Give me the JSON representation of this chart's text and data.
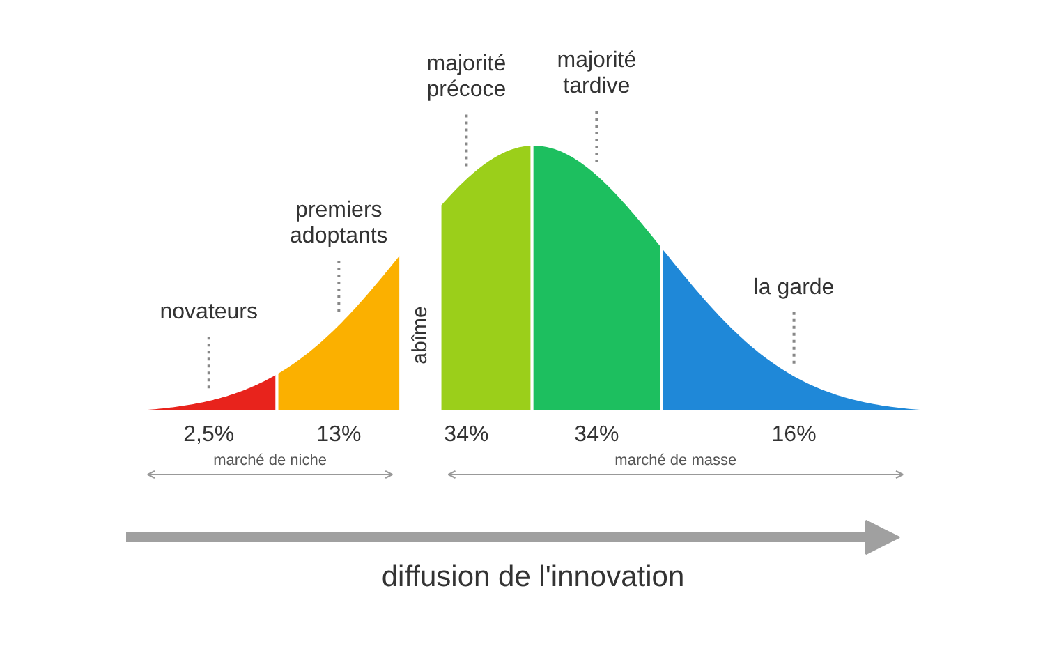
{
  "chart_data": {
    "type": "other",
    "categories": [
      "novateurs",
      "premiers\nadoptants",
      "majorité\nprécoce",
      "majorité\ntardive",
      "la garde"
    ],
    "values": [
      2.5,
      13,
      34,
      34,
      16
    ],
    "value_labels": [
      "2,5%",
      "13%",
      "34%",
      "34%",
      "16%"
    ],
    "colors": [
      "#e8231c",
      "#fbb000",
      "#9bcf1a",
      "#1dbf5f",
      "#1f88d8"
    ],
    "annotations": [
      "abîme",
      "marché de niche",
      "marché de masse",
      "diffusion de l'innovation"
    ]
  }
}
